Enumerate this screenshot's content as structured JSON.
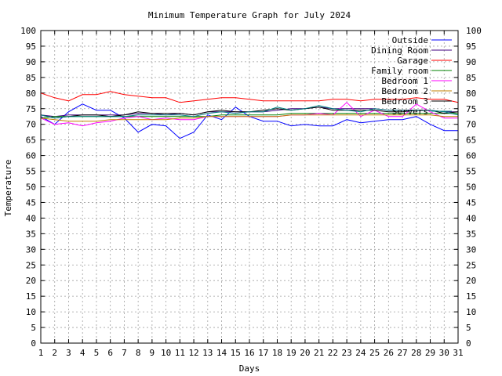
{
  "chart_data": {
    "type": "line",
    "title": "Minimum Temperature Graph for July 2024",
    "xlabel": "Days",
    "ylabel": "Temperature",
    "xlim": [
      1,
      31
    ],
    "ylim": [
      0,
      100
    ],
    "x_ticks": [
      1,
      2,
      3,
      4,
      5,
      6,
      7,
      8,
      9,
      10,
      11,
      12,
      13,
      14,
      15,
      16,
      17,
      18,
      19,
      20,
      21,
      22,
      23,
      24,
      25,
      26,
      27,
      28,
      29,
      30,
      31
    ],
    "y_ticks": [
      0,
      5,
      10,
      15,
      20,
      25,
      30,
      35,
      40,
      45,
      50,
      55,
      60,
      65,
      70,
      75,
      80,
      85,
      90,
      95,
      100
    ],
    "grid": true,
    "legend_position": "top-right",
    "x": [
      1,
      2,
      3,
      4,
      5,
      6,
      7,
      8,
      9,
      10,
      11,
      12,
      13,
      14,
      15,
      16,
      17,
      18,
      19,
      20,
      21,
      22,
      23,
      24,
      25,
      26,
      27,
      28,
      29,
      30,
      31
    ],
    "series": [
      {
        "name": "Outside",
        "color": "#0000ff",
        "values": [
          72.5,
          70.0,
          74.0,
          76.5,
          74.5,
          74.5,
          72.0,
          67.5,
          70.0,
          69.5,
          65.5,
          67.5,
          73.0,
          71.5,
          75.5,
          72.5,
          71.0,
          71.0,
          69.5,
          70.0,
          69.5,
          69.5,
          71.5,
          70.5,
          71.0,
          71.5,
          71.5,
          72.5,
          70.0,
          68.0,
          68.0
        ]
      },
      {
        "name": "Dining Room",
        "color": "#400080",
        "values": [
          73.0,
          72.5,
          73.0,
          73.0,
          73.0,
          73.0,
          73.0,
          73.5,
          73.5,
          73.0,
          73.5,
          73.0,
          74.0,
          74.0,
          74.0,
          74.0,
          74.0,
          74.5,
          75.0,
          75.0,
          75.5,
          75.0,
          75.0,
          75.0,
          75.0,
          74.5,
          74.5,
          74.5,
          74.5,
          74.0,
          74.0
        ]
      },
      {
        "name": "Garage",
        "color": "#ff0000",
        "values": [
          80.0,
          78.5,
          77.5,
          79.5,
          79.5,
          80.5,
          79.5,
          79.0,
          78.5,
          78.5,
          77.0,
          77.5,
          78.0,
          78.5,
          78.5,
          78.0,
          77.5,
          77.5,
          77.5,
          77.5,
          77.5,
          78.0,
          78.0,
          77.5,
          78.0,
          78.0,
          78.0,
          78.5,
          78.0,
          78.0,
          77.0
        ]
      },
      {
        "name": "Family room",
        "color": "#008000",
        "values": [
          72.0,
          72.5,
          72.5,
          72.5,
          72.5,
          72.5,
          72.5,
          72.5,
          72.5,
          72.5,
          72.5,
          72.5,
          72.5,
          73.0,
          73.0,
          73.0,
          73.0,
          73.0,
          73.5,
          73.5,
          73.5,
          73.5,
          73.5,
          73.5,
          73.5,
          73.5,
          73.5,
          73.5,
          73.5,
          73.5,
          73.5
        ]
      },
      {
        "name": "Bedroom 1",
        "color": "#ff00ff",
        "values": [
          72.0,
          70.0,
          70.5,
          69.5,
          70.5,
          71.0,
          72.0,
          72.5,
          71.5,
          72.0,
          71.5,
          71.5,
          72.5,
          72.5,
          72.5,
          72.5,
          72.5,
          72.5,
          73.0,
          73.0,
          73.5,
          73.0,
          77.0,
          72.5,
          74.5,
          72.5,
          72.5,
          76.5,
          74.0,
          72.0,
          72.0
        ]
      },
      {
        "name": "Bedroom 2",
        "color": "#c08000",
        "values": [
          72.0,
          71.5,
          71.0,
          71.0,
          71.0,
          71.5,
          71.5,
          71.5,
          71.5,
          71.5,
          72.0,
          72.0,
          72.5,
          72.5,
          72.5,
          72.5,
          72.5,
          72.5,
          73.0,
          73.0,
          73.0,
          73.0,
          73.0,
          73.0,
          73.0,
          73.0,
          73.0,
          73.0,
          73.0,
          72.5,
          72.5
        ]
      },
      {
        "name": "Bedroom 3",
        "color": "#000000",
        "values": [
          73.0,
          72.0,
          72.5,
          73.0,
          73.0,
          72.5,
          73.0,
          74.0,
          73.5,
          73.5,
          73.5,
          73.0,
          74.0,
          74.5,
          74.0,
          74.0,
          74.5,
          75.0,
          74.5,
          75.0,
          75.5,
          74.5,
          74.5,
          74.5,
          74.5,
          74.0,
          74.0,
          74.5,
          74.5,
          73.5,
          74.0
        ]
      },
      {
        "name": "Servers",
        "color": "#008080",
        "values": [
          73.0,
          72.0,
          72.5,
          72.5,
          72.5,
          72.5,
          72.5,
          73.0,
          73.0,
          73.0,
          73.0,
          72.5,
          73.5,
          74.0,
          73.5,
          74.0,
          74.0,
          75.5,
          74.5,
          75.0,
          76.0,
          75.0,
          74.5,
          74.0,
          75.0,
          74.5,
          74.5,
          74.5,
          74.5,
          74.0,
          73.0
        ]
      }
    ]
  }
}
